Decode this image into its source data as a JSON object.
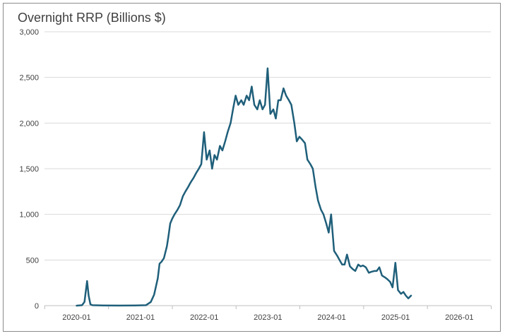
{
  "chart_data": {
    "type": "line",
    "title": "Overnight RRP (Billions $)",
    "xlabel": "",
    "ylabel": "",
    "ylim": [
      0,
      3000
    ],
    "yticks": [
      0,
      500,
      1000,
      1500,
      2000,
      2500,
      3000
    ],
    "ytick_labels": [
      "0",
      "500",
      "1,000",
      "1,500",
      "2,000",
      "2,500",
      "3,000"
    ],
    "xlim": [
      "2019-07",
      "2026-07"
    ],
    "xticks": [
      "2020-01",
      "2021-01",
      "2022-01",
      "2023-01",
      "2024-01",
      "2025-01",
      "2026-01"
    ],
    "grid": true,
    "legend": "none",
    "colors": {
      "line": "#1f5f7a",
      "grid": "#d9d9d9",
      "axis": "#bfbfbf",
      "text": "#404040"
    },
    "series": [
      {
        "x": [
          "2020-01-01",
          "2020-02-01",
          "2020-02-15",
          "2020-03-01",
          "2020-03-10",
          "2020-03-20",
          "2020-04-01",
          "2020-06-01",
          "2020-09-01",
          "2020-12-01",
          "2021-02-01",
          "2021-03-01",
          "2021-03-20",
          "2021-04-10",
          "2021-04-20",
          "2021-05-01",
          "2021-05-15",
          "2021-06-01",
          "2021-06-10",
          "2021-06-20",
          "2021-07-01",
          "2021-07-15",
          "2021-08-01",
          "2021-08-15",
          "2021-09-01",
          "2021-09-15",
          "2021-10-01",
          "2021-10-15",
          "2021-11-01",
          "2021-11-15",
          "2021-12-01",
          "2021-12-15",
          "2021-12-31",
          "2022-01-15",
          "2022-02-01",
          "2022-02-15",
          "2022-03-01",
          "2022-03-15",
          "2022-04-01",
          "2022-04-15",
          "2022-05-01",
          "2022-05-15",
          "2022-06-01",
          "2022-06-15",
          "2022-06-30",
          "2022-07-15",
          "2022-08-01",
          "2022-08-15",
          "2022-09-01",
          "2022-09-15",
          "2022-09-30",
          "2022-10-15",
          "2022-11-01",
          "2022-11-15",
          "2022-12-01",
          "2022-12-15",
          "2022-12-30",
          "2023-01-15",
          "2023-02-01",
          "2023-02-15",
          "2023-03-01",
          "2023-03-15",
          "2023-03-31",
          "2023-04-15",
          "2023-05-01",
          "2023-05-15",
          "2023-06-01",
          "2023-06-15",
          "2023-06-30",
          "2023-07-15",
          "2023-08-01",
          "2023-08-15",
          "2023-09-01",
          "2023-09-15",
          "2023-10-01",
          "2023-10-15",
          "2023-11-01",
          "2023-11-15",
          "2023-12-01",
          "2023-12-15",
          "2023-12-29",
          "2024-01-15",
          "2024-02-01",
          "2024-02-15",
          "2024-03-01",
          "2024-03-15",
          "2024-03-29",
          "2024-04-15",
          "2024-05-01",
          "2024-05-15",
          "2024-06-01",
          "2024-06-15",
          "2024-06-28",
          "2024-07-15",
          "2024-08-01",
          "2024-08-15",
          "2024-09-01",
          "2024-09-15",
          "2024-09-30",
          "2024-10-15",
          "2024-11-01",
          "2024-11-15",
          "2024-12-01",
          "2024-12-15",
          "2024-12-31",
          "2025-01-15",
          "2025-02-01",
          "2025-02-15",
          "2025-03-01",
          "2025-03-15",
          "2025-03-31"
        ],
        "y": [
          0,
          5,
          40,
          270,
          110,
          15,
          5,
          2,
          1,
          2,
          5,
          40,
          120,
          300,
          460,
          480,
          520,
          650,
          760,
          900,
          950,
          1000,
          1050,
          1100,
          1200,
          1250,
          1300,
          1350,
          1400,
          1450,
          1500,
          1550,
          1900,
          1600,
          1700,
          1500,
          1650,
          1600,
          1750,
          1700,
          1800,
          1900,
          2000,
          2150,
          2300,
          2200,
          2250,
          2200,
          2300,
          2250,
          2400,
          2200,
          2150,
          2250,
          2150,
          2200,
          2600,
          2100,
          2150,
          2050,
          2250,
          2250,
          2380,
          2300,
          2250,
          2200,
          2000,
          1800,
          1850,
          1820,
          1780,
          1600,
          1550,
          1500,
          1300,
          1150,
          1050,
          1000,
          900,
          800,
          1000,
          600,
          550,
          500,
          450,
          450,
          560,
          430,
          400,
          380,
          450,
          430,
          440,
          420,
          360,
          370,
          380,
          380,
          420,
          330,
          310,
          290,
          260,
          200,
          470,
          170,
          130,
          150,
          110,
          80,
          110
        ]
      }
    ]
  }
}
